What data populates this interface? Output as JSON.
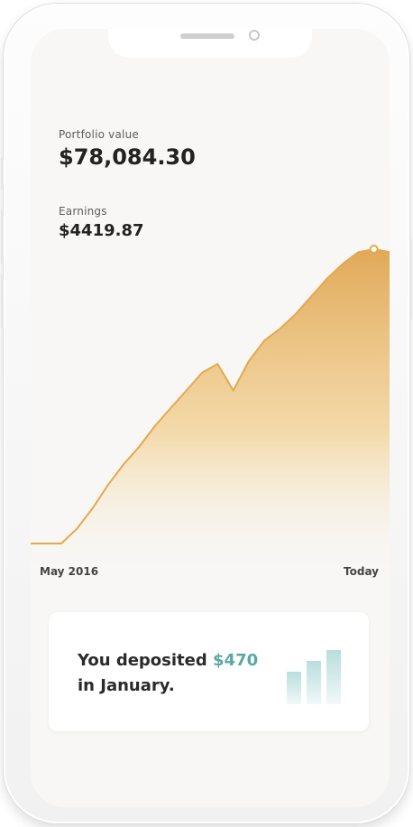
{
  "colors": {
    "accent": "#E8AF55",
    "accent_fill_top": "#DFA550",
    "card_amount": "#5AA8A2",
    "background": "#F8F7F5"
  },
  "portfolio": {
    "label": "Portfolio value",
    "value": "$78,084.30"
  },
  "earnings": {
    "label": "Earnings",
    "value": "$4419.87"
  },
  "chart_data": {
    "type": "area",
    "x_start_label": "May 2016",
    "x_end_label": "Today",
    "grid": false,
    "values": [
      0,
      0.05,
      0.12,
      0.2,
      0.27,
      0.33,
      0.4,
      0.46,
      0.52,
      0.58,
      0.61,
      0.52,
      0.62,
      0.69,
      0.73,
      0.78,
      0.84,
      0.9,
      0.95,
      0.99,
      1.0,
      0.99
    ]
  },
  "deposit_card": {
    "line1_prefix": "You deposited ",
    "amount": "$470",
    "line2": "in January.",
    "icon": "bar-chart-icon"
  }
}
